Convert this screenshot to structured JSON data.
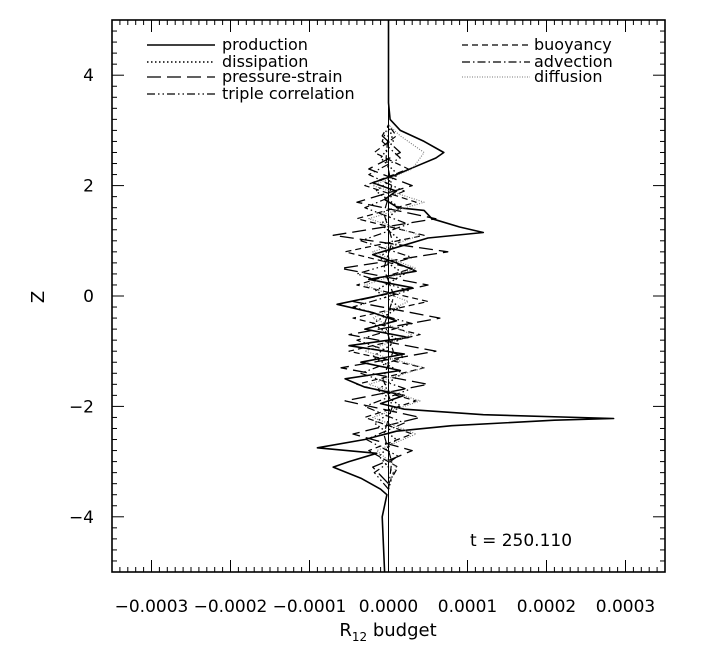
{
  "chart_data": {
    "type": "line",
    "title": "",
    "xlabel": "R",
    "xlabel_sub": "12",
    "xlabel_suffix": " budget",
    "ylabel": "Z",
    "xlim": [
      -0.00035,
      0.00035
    ],
    "ylim": [
      -5,
      5
    ],
    "xticks": [
      -0.0003,
      -0.0002,
      -0.0001,
      0.0,
      0.0001,
      0.0002,
      0.0003
    ],
    "xtick_labels": [
      "−0.0003",
      "−0.0002",
      "−0.0001",
      "0.0000",
      "0.0001",
      "0.0002",
      "0.0003"
    ],
    "yticks": [
      -4,
      -2,
      0,
      2,
      4
    ],
    "ytick_labels": [
      "−4",
      "−2",
      "0",
      "2",
      "4"
    ],
    "grid": false,
    "legend_position": "top",
    "annotation": "t = 250.110",
    "series": [
      {
        "name": "production",
        "dash": "solid",
        "z": [
          -5.0,
          -4.0,
          -3.6,
          -3.5,
          -3.3,
          -3.1,
          -3.0,
          -2.85,
          -2.75,
          -2.6,
          -2.45,
          -2.35,
          -2.25,
          -2.22,
          -2.15,
          -2.05,
          -1.95,
          -1.8,
          -1.65,
          -1.5,
          -1.35,
          -1.2,
          -1.05,
          -0.9,
          -0.75,
          -0.6,
          -0.45,
          -0.3,
          -0.15,
          0.0,
          0.15,
          0.3,
          0.45,
          0.6,
          0.75,
          0.9,
          1.05,
          1.15,
          1.25,
          1.4,
          1.55,
          1.6,
          1.75,
          1.9,
          2.05,
          2.2,
          2.35,
          2.5,
          2.6,
          2.8,
          3.0,
          3.2,
          3.5,
          5.0
        ],
        "x": [
          -5e-06,
          -8e-06,
          -2e-06,
          -1e-05,
          -3.5e-05,
          -7e-05,
          -5e-05,
          -1.5e-05,
          -9e-05,
          -3e-05,
          1e-05,
          8e-05,
          0.00021,
          0.000285,
          0.00012,
          2e-05,
          -1e-05,
          2e-05,
          -3e-05,
          -5.5e-05,
          1.5e-05,
          -3.5e-05,
          2e-05,
          -5e-05,
          2.5e-05,
          -3e-05,
          1e-05,
          -2e-05,
          -6.5e-05,
          -1.5e-05,
          3e-05,
          -2.5e-05,
          3.5e-05,
          1e-05,
          -2e-05,
          1.5e-05,
          5e-05,
          0.00012,
          9e-05,
          5.5e-05,
          4.5e-05,
          1.2e-05,
          -5e-06,
          1e-05,
          -2e-05,
          1e-05,
          3.5e-05,
          6e-05,
          7e-05,
          4.5e-05,
          1.5e-05,
          2e-06,
          0.0,
          0.0
        ]
      },
      {
        "name": "dissipation",
        "dash": "dotted",
        "z": [
          -3.5,
          -3.2,
          -2.9,
          -2.6,
          -2.3,
          -2.0,
          -1.7,
          -1.4,
          -1.1,
          -0.8,
          -0.5,
          -0.2,
          0.1,
          0.4,
          0.7,
          1.0,
          1.3,
          1.6,
          1.9,
          2.2,
          2.5,
          2.8,
          3.1
        ],
        "x": [
          0.0,
          6e-06,
          -1.2e-05,
          1e-05,
          -1.8e-05,
          1.6e-05,
          -1.4e-05,
          1.8e-05,
          -2e-05,
          1.2e-05,
          -2e-05,
          1.4e-05,
          -1.6e-05,
          2e-05,
          -1.2e-05,
          1.6e-05,
          -1e-05,
          1.4e-05,
          -1.6e-05,
          1.2e-05,
          -1e-05,
          6e-06,
          0.0
        ]
      },
      {
        "name": "pressure-strain",
        "dash": "longdash",
        "z": [
          -3.4,
          -3.1,
          -2.8,
          -2.5,
          -2.2,
          -1.9,
          -1.6,
          -1.3,
          -1.0,
          -0.7,
          -0.4,
          -0.1,
          0.2,
          0.5,
          0.8,
          1.1,
          1.4,
          1.7,
          2.0,
          2.3,
          2.6,
          2.9,
          3.1
        ],
        "x": [
          0.0,
          -2e-05,
          3e-05,
          -4.5e-05,
          4e-05,
          -5.5e-05,
          5e-05,
          -6e-05,
          6e-05,
          -5e-05,
          6.5e-05,
          -4.5e-05,
          5e-05,
          -6e-05,
          7.5e-05,
          -7e-05,
          6e-05,
          -4e-05,
          3e-05,
          -2.5e-05,
          1.5e-05,
          -8e-06,
          0.0
        ]
      },
      {
        "name": "triple correlation",
        "dash": "dashdotdot",
        "z": [
          -3.5,
          -3.2,
          -2.9,
          -2.6,
          -2.3,
          -2.0,
          -1.7,
          -1.4,
          -1.1,
          -0.8,
          -0.5,
          -0.2,
          0.1,
          0.4,
          0.7,
          1.0,
          1.3,
          1.6,
          1.9,
          2.2,
          2.5,
          2.8,
          3.1
        ],
        "x": [
          0.0,
          -1.8e-05,
          1.2e-05,
          -2.8e-05,
          2e-05,
          -3e-05,
          2.5e-05,
          -3.5e-05,
          2e-05,
          -4e-05,
          3e-05,
          -4.5e-05,
          2.5e-05,
          -4e-05,
          3e-05,
          -3.5e-05,
          2.5e-05,
          -3e-05,
          2e-05,
          -2.5e-05,
          1.5e-05,
          -8e-06,
          0.0
        ]
      },
      {
        "name": "buoyancy",
        "dash": "dashed",
        "z": [
          -3.4,
          -3.1,
          -2.8,
          -2.5,
          -2.2,
          -1.9,
          -1.6,
          -1.3,
          -1.0,
          -0.7,
          -0.4,
          -0.1,
          0.2,
          0.5,
          0.8,
          1.1,
          1.4,
          1.7,
          2.0,
          2.3,
          2.6,
          2.9,
          3.1
        ],
        "x": [
          0.0,
          1.2e-05,
          -2.5e-05,
          3e-05,
          -3e-05,
          3.5e-05,
          -4e-05,
          4.5e-05,
          -5e-05,
          4e-05,
          -4.5e-05,
          5e-05,
          -4e-05,
          3e-05,
          -5.5e-05,
          4.5e-05,
          -4e-05,
          3.5e-05,
          -3e-05,
          2.5e-05,
          -1.8e-05,
          1e-05,
          0.0
        ]
      },
      {
        "name": "advection",
        "dash": "dashdot",
        "z": [
          -3.5,
          -3.0,
          -2.5,
          -2.0,
          -1.5,
          -1.0,
          -0.5,
          0.0,
          0.5,
          1.0,
          1.5,
          2.0,
          2.5,
          3.0
        ],
        "x": [
          0.0,
          4e-06,
          -6e-06,
          5e-06,
          -7e-06,
          6e-06,
          -5e-06,
          7e-06,
          -6e-06,
          5e-06,
          -6e-06,
          4e-06,
          -3e-06,
          0.0
        ]
      },
      {
        "name": "diffusion",
        "dash": "fine",
        "z": [
          -3.4,
          -3.1,
          -2.8,
          -2.5,
          -2.2,
          -1.9,
          -1.6,
          -1.3,
          -1.0,
          -0.7,
          -0.4,
          -0.1,
          0.2,
          0.5,
          0.8,
          1.1,
          1.4,
          1.7,
          2.0,
          2.3,
          2.6,
          2.9,
          3.1
        ],
        "x": [
          0.0,
          1e-05,
          -1.5e-05,
          3.5e-05,
          -2e-05,
          4e-05,
          -2.5e-05,
          4.5e-05,
          -3e-05,
          3e-05,
          -2e-05,
          2.5e-05,
          -3e-05,
          3.5e-05,
          -2e-05,
          4e-05,
          -2.5e-05,
          4.5e-05,
          -2e-05,
          3e-05,
          4.5e-05,
          1.5e-05,
          0.0
        ]
      }
    ]
  }
}
